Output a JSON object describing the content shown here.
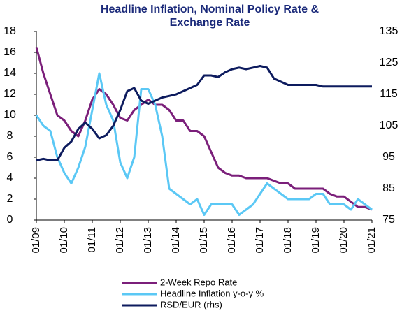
{
  "chart_data": {
    "type": "line",
    "title_lines": [
      "Headline Inflation, Nominal Policy Rate &",
      "Exchange Rate"
    ],
    "categories": [
      "01/09",
      null,
      null,
      null,
      "01/10",
      null,
      null,
      null,
      "01/11",
      null,
      null,
      null,
      "01/12",
      null,
      null,
      null,
      "01/13",
      null,
      null,
      null,
      "01/14",
      null,
      null,
      null,
      "01/15",
      null,
      null,
      null,
      "01/16",
      null,
      null,
      null,
      "01/17",
      null,
      null,
      null,
      "01/18",
      null,
      null,
      null,
      "01/19",
      null,
      null,
      null,
      "01/20",
      null,
      null,
      null,
      "01/21"
    ],
    "series": [
      {
        "name": "2-Week Repo Rate",
        "color": "#7b1f7a",
        "values": [
          16.5,
          14,
          12,
          10,
          9.5,
          8.5,
          8,
          9.5,
          11.5,
          12.5,
          12,
          11,
          9.75,
          9.5,
          10.5,
          11,
          11.5,
          11,
          11,
          10.5,
          9.5,
          9.5,
          8.5,
          8.5,
          8,
          6.5,
          5,
          4.5,
          4.25,
          4.25,
          4,
          4,
          4,
          4,
          3.75,
          3.5,
          3.5,
          3,
          3,
          3,
          3,
          3,
          2.5,
          2.25,
          2.25,
          1.75,
          1.25,
          1.25,
          1
        ]
      },
      {
        "name": "Headline Inflation  y-o-y %",
        "color": "#5bc8f5",
        "values": [
          10,
          9,
          8.5,
          6,
          4.5,
          3.5,
          5,
          7,
          10.5,
          14,
          11,
          9.5,
          5.5,
          4,
          6,
          12.5,
          12.5,
          11,
          8,
          3,
          2.5,
          2,
          1.5,
          2,
          0.5,
          1.5,
          1.5,
          1.5,
          1.5,
          0.5,
          1,
          1.5,
          2.5,
          3.5,
          3,
          2.5,
          2,
          2,
          2,
          2,
          2.5,
          2.5,
          1.5,
          1.5,
          1.5,
          1,
          2,
          1.5,
          1
        ]
      },
      {
        "name": "RSD/EUR (rhs)",
        "color": "#0d1b5e",
        "axis": "y2",
        "values": [
          94,
          94.5,
          94,
          94,
          98,
          100,
          104,
          106,
          104,
          101,
          102,
          105,
          110,
          116,
          117,
          113,
          112,
          113,
          114,
          114.5,
          115,
          116,
          117,
          118,
          121,
          121,
          120.5,
          122,
          123,
          123.5,
          123,
          123.5,
          124,
          123.5,
          120,
          119,
          118,
          118,
          118,
          118,
          118,
          117.5,
          117.5,
          117.5,
          117.5,
          117.5,
          117.5,
          117.5,
          117.5
        ]
      }
    ],
    "ylim": [
      0,
      18
    ],
    "yticks": [
      0,
      2,
      4,
      6,
      8,
      10,
      12,
      14,
      16,
      18
    ],
    "y2lim": [
      75,
      135
    ],
    "y2ticks": [
      75,
      85,
      95,
      105,
      115,
      125,
      135
    ]
  }
}
